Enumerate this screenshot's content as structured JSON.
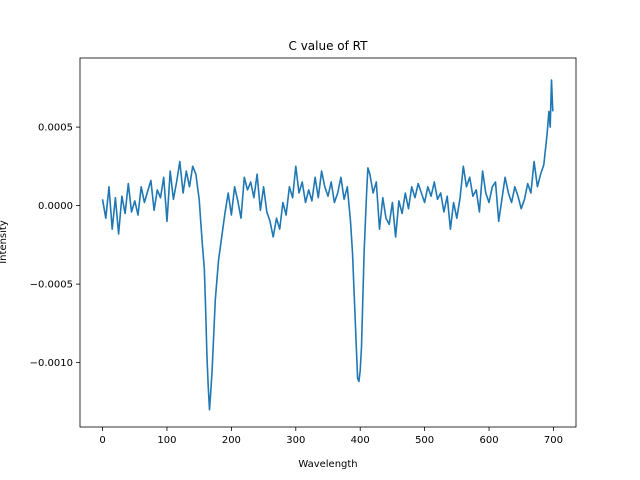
{
  "chart_data": {
    "type": "line",
    "title": "C value of RT",
    "xlabel": "Wavelength",
    "ylabel": "Intensity",
    "xlim": [
      -35,
      735
    ],
    "ylim": [
      -0.00141,
      0.00094
    ],
    "xticks": [
      0,
      100,
      200,
      300,
      400,
      500,
      600,
      700
    ],
    "xtick_labels": [
      "0",
      "100",
      "200",
      "300",
      "400",
      "500",
      "600",
      "700"
    ],
    "yticks": [
      -0.001,
      -0.0005,
      0.0,
      0.0005
    ],
    "ytick_labels": [
      "−0.0010",
      "−0.0005",
      "0.0000",
      "0.0005"
    ],
    "grid": false,
    "series": [
      {
        "color": "#1f77b4",
        "x": [
          0,
          5,
          10,
          15,
          20,
          25,
          30,
          35,
          40,
          45,
          50,
          55,
          60,
          65,
          70,
          75,
          80,
          85,
          90,
          95,
          100,
          105,
          110,
          115,
          120,
          125,
          130,
          135,
          140,
          145,
          148,
          150,
          152,
          155,
          158,
          160,
          162,
          164,
          166,
          168,
          170,
          175,
          180,
          185,
          190,
          195,
          200,
          205,
          210,
          215,
          220,
          225,
          230,
          235,
          240,
          245,
          250,
          255,
          260,
          265,
          270,
          275,
          280,
          285,
          290,
          295,
          300,
          305,
          310,
          315,
          320,
          325,
          330,
          335,
          340,
          345,
          350,
          355,
          360,
          365,
          370,
          375,
          380,
          385,
          388,
          391,
          394,
          396,
          398,
          400,
          402,
          404,
          406,
          408,
          410,
          412,
          415,
          420,
          425,
          430,
          435,
          440,
          445,
          450,
          455,
          460,
          465,
          470,
          475,
          480,
          485,
          490,
          495,
          500,
          505,
          510,
          515,
          520,
          525,
          530,
          535,
          540,
          545,
          550,
          555,
          560,
          565,
          570,
          575,
          580,
          585,
          590,
          595,
          600,
          605,
          610,
          615,
          620,
          625,
          630,
          635,
          640,
          645,
          650,
          655,
          660,
          665,
          670,
          675,
          680,
          685,
          690,
          693,
          695,
          697,
          699
        ],
        "values": [
          4e-05,
          -8e-05,
          0.00012,
          -0.00015,
          5e-05,
          -0.00018,
          6e-05,
          -5e-05,
          0.00014,
          -4e-05,
          3e-05,
          -6e-05,
          0.00012,
          2e-05,
          9e-05,
          0.00016,
          -3e-05,
          0.0001,
          5e-05,
          0.00018,
          -0.0001,
          0.00022,
          4e-05,
          0.00015,
          0.00028,
          8e-05,
          0.00022,
          0.00012,
          0.00025,
          0.0002,
          0.0001,
          4e-05,
          -8e-05,
          -0.00025,
          -0.0004,
          -0.00065,
          -0.00095,
          -0.00115,
          -0.0013,
          -0.00118,
          -0.00105,
          -0.0006,
          -0.00035,
          -0.0002,
          -5e-05,
          8e-05,
          -6e-05,
          0.00012,
          3e-05,
          -8e-05,
          0.00018,
          0.0001,
          0.00015,
          5e-05,
          0.0002,
          -3e-05,
          0.00012,
          -4e-05,
          -0.0001,
          -0.0002,
          -8e-05,
          -0.00015,
          2e-05,
          -6e-05,
          0.00012,
          5e-05,
          0.00025,
          8e-05,
          0.00015,
          2e-05,
          0.0001,
          3e-05,
          0.00018,
          5e-05,
          0.00022,
          0.00012,
          6e-05,
          0.00015,
          2e-05,
          8e-05,
          0.00018,
          4e-05,
          0.00012,
          -0.0001,
          -0.0003,
          -0.0006,
          -0.0009,
          -0.0011,
          -0.00112,
          -0.00105,
          -0.0009,
          -0.0006,
          -0.0003,
          -0.0001,
          8e-05,
          0.00024,
          0.0002,
          8e-05,
          0.00015,
          -0.00015,
          5e-05,
          -8e-05,
          -0.00012,
          2e-05,
          -0.0002,
          3e-05,
          -5e-05,
          8e-05,
          -2e-05,
          0.00012,
          5e-05,
          0.00014,
          8e-05,
          2e-05,
          0.00012,
          6e-05,
          0.00015,
          4e-05,
          8e-05,
          -4e-05,
          6e-05,
          -0.00015,
          2e-05,
          -8e-05,
          5e-05,
          0.00025,
          0.00012,
          0.00018,
          6e-05,
          0.0001,
          -4e-05,
          0.00022,
          8e-05,
          2e-05,
          0.00012,
          0.00015,
          -0.0001,
          4e-05,
          0.00018,
          8e-05,
          2e-05,
          0.00012,
          6e-05,
          -2e-05,
          4e-05,
          0.00014,
          8e-05,
          0.00028,
          0.00012,
          0.0002,
          0.00026,
          0.00045,
          0.0006,
          0.0005,
          0.0008,
          0.0006
        ]
      }
    ]
  }
}
